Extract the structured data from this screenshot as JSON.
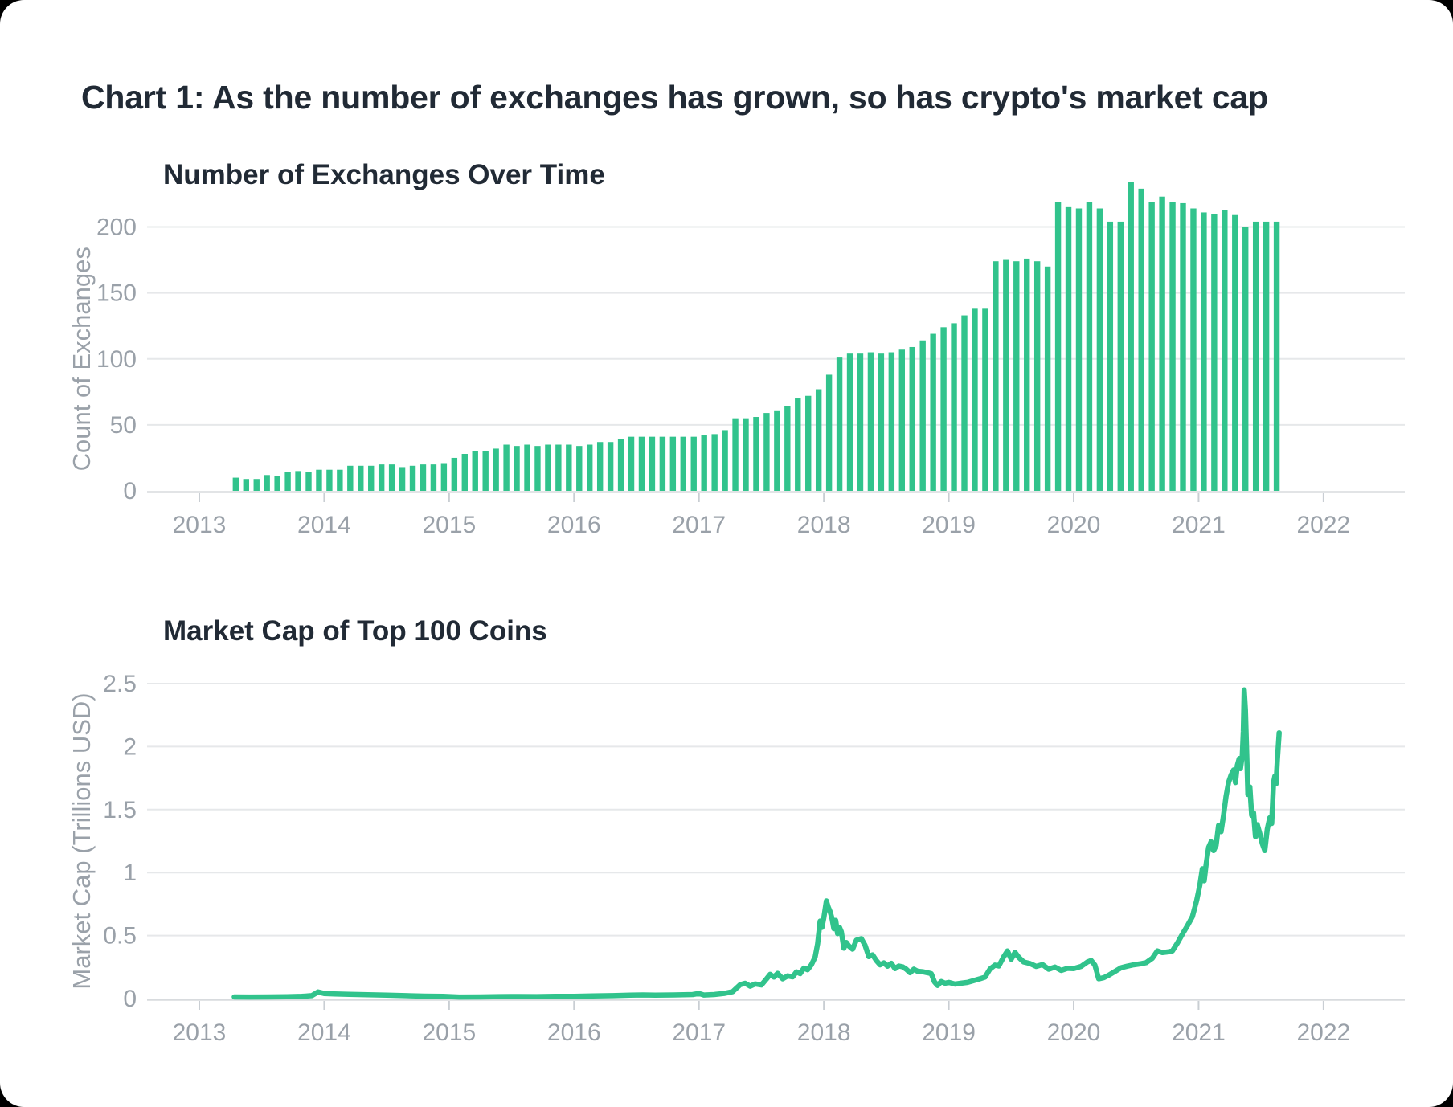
{
  "page": {
    "title": "Chart 1: As the number of exchanges has grown, so has crypto's market cap"
  },
  "colors": {
    "accent_green": "#31c38c",
    "title_text": "#212a35",
    "axis_text": "#9aa1a9",
    "gridline": "#e6e8ea",
    "axis_line": "#d8dbde",
    "tick_mark": "#c9ced3",
    "card_background": "#ffffff",
    "page_background": "#000000"
  },
  "chart_data": [
    {
      "type": "bar",
      "title": "Number of Exchanges Over Time",
      "xlabel": "",
      "ylabel": "Count of Exchanges",
      "x_tick_labels": [
        "2013",
        "2014",
        "2015",
        "2016",
        "2017",
        "2018",
        "2019",
        "2020",
        "2021",
        "2022"
      ],
      "y_ticks": [
        {
          "v": 0,
          "label": "0"
        },
        {
          "v": 50,
          "label": "50"
        },
        {
          "v": 100,
          "label": "100"
        },
        {
          "v": 150,
          "label": "150"
        },
        {
          "v": 200,
          "label": "200"
        }
      ],
      "ylim": [
        0,
        240
      ],
      "series_start": "2013-04",
      "frequency": "monthly",
      "values": [
        10,
        9,
        9,
        12,
        11,
        14,
        15,
        14,
        16,
        16,
        16,
        19,
        19,
        19,
        20,
        20,
        18,
        19,
        20,
        20,
        21,
        25,
        28,
        30,
        30,
        32,
        35,
        34,
        35,
        34,
        35,
        35,
        35,
        34,
        35,
        37,
        37,
        39,
        41,
        41,
        41,
        41,
        41,
        41,
        41,
        42,
        43,
        46,
        55,
        55,
        56,
        59,
        61,
        64,
        70,
        72,
        77,
        88,
        101,
        104,
        104,
        105,
        104,
        105,
        107,
        109,
        114,
        119,
        124,
        127,
        133,
        138,
        138,
        174,
        175,
        174,
        176,
        174,
        170,
        219,
        215,
        214,
        219,
        214,
        204,
        204,
        234,
        229,
        219,
        223,
        219,
        218,
        214,
        211,
        210,
        213,
        209,
        200,
        204,
        204,
        204
      ]
    },
    {
      "type": "line",
      "title": "Market Cap of Top 100 Coins",
      "xlabel": "",
      "ylabel": "Market Cap (Trillions USD)",
      "x_tick_labels": [
        "2013",
        "2014",
        "2015",
        "2016",
        "2017",
        "2018",
        "2019",
        "2020",
        "2021",
        "2022"
      ],
      "y_ticks": [
        {
          "v": 0,
          "label": "0"
        },
        {
          "v": 0.5,
          "label": "0.5"
        },
        {
          "v": 1,
          "label": "1"
        },
        {
          "v": 1.5,
          "label": "1.5"
        },
        {
          "v": 2,
          "label": "2"
        },
        {
          "v": 2.5,
          "label": "2.5"
        }
      ],
      "ylim": [
        0,
        2.6
      ],
      "x_unit": "decimal_year",
      "points": [
        [
          2013.28,
          0.013
        ],
        [
          2013.4,
          0.012
        ],
        [
          2013.55,
          0.013
        ],
        [
          2013.7,
          0.014
        ],
        [
          2013.82,
          0.017
        ],
        [
          2013.9,
          0.023
        ],
        [
          2013.95,
          0.052
        ],
        [
          2014.0,
          0.04
        ],
        [
          2014.08,
          0.037
        ],
        [
          2014.2,
          0.033
        ],
        [
          2014.35,
          0.03
        ],
        [
          2014.5,
          0.027
        ],
        [
          2014.65,
          0.023
        ],
        [
          2014.8,
          0.019
        ],
        [
          2014.95,
          0.017
        ],
        [
          2015.08,
          0.012
        ],
        [
          2015.25,
          0.013
        ],
        [
          2015.4,
          0.015
        ],
        [
          2015.55,
          0.016
        ],
        [
          2015.7,
          0.015
        ],
        [
          2015.85,
          0.017
        ],
        [
          2016.0,
          0.018
        ],
        [
          2016.15,
          0.021
        ],
        [
          2016.3,
          0.023
        ],
        [
          2016.45,
          0.027
        ],
        [
          2016.55,
          0.029
        ],
        [
          2016.65,
          0.027
        ],
        [
          2016.8,
          0.029
        ],
        [
          2016.95,
          0.032
        ],
        [
          2017.0,
          0.04
        ],
        [
          2017.04,
          0.028
        ],
        [
          2017.12,
          0.032
        ],
        [
          2017.2,
          0.04
        ],
        [
          2017.27,
          0.055
        ],
        [
          2017.33,
          0.11
        ],
        [
          2017.37,
          0.121
        ],
        [
          2017.41,
          0.098
        ],
        [
          2017.45,
          0.116
        ],
        [
          2017.5,
          0.108
        ],
        [
          2017.54,
          0.155
        ],
        [
          2017.57,
          0.192
        ],
        [
          2017.6,
          0.17
        ],
        [
          2017.63,
          0.2
        ],
        [
          2017.67,
          0.157
        ],
        [
          2017.71,
          0.18
        ],
        [
          2017.75,
          0.172
        ],
        [
          2017.78,
          0.212
        ],
        [
          2017.81,
          0.198
        ],
        [
          2017.84,
          0.242
        ],
        [
          2017.87,
          0.228
        ],
        [
          2017.9,
          0.268
        ],
        [
          2017.93,
          0.33
        ],
        [
          2017.95,
          0.435
        ],
        [
          2017.97,
          0.615
        ],
        [
          2017.985,
          0.565
        ],
        [
          2018.0,
          0.645
        ],
        [
          2018.02,
          0.775
        ],
        [
          2018.035,
          0.725
        ],
        [
          2018.05,
          0.69
        ],
        [
          2018.065,
          0.635
        ],
        [
          2018.08,
          0.555
        ],
        [
          2018.095,
          0.62
        ],
        [
          2018.11,
          0.515
        ],
        [
          2018.125,
          0.565
        ],
        [
          2018.14,
          0.53
        ],
        [
          2018.16,
          0.4
        ],
        [
          2018.18,
          0.445
        ],
        [
          2018.2,
          0.418
        ],
        [
          2018.23,
          0.392
        ],
        [
          2018.26,
          0.463
        ],
        [
          2018.3,
          0.475
        ],
        [
          2018.33,
          0.423
        ],
        [
          2018.36,
          0.333
        ],
        [
          2018.39,
          0.347
        ],
        [
          2018.42,
          0.302
        ],
        [
          2018.45,
          0.268
        ],
        [
          2018.48,
          0.283
        ],
        [
          2018.51,
          0.257
        ],
        [
          2018.54,
          0.28
        ],
        [
          2018.57,
          0.237
        ],
        [
          2018.6,
          0.258
        ],
        [
          2018.63,
          0.252
        ],
        [
          2018.66,
          0.233
        ],
        [
          2018.69,
          0.205
        ],
        [
          2018.72,
          0.233
        ],
        [
          2018.75,
          0.217
        ],
        [
          2018.79,
          0.213
        ],
        [
          2018.83,
          0.205
        ],
        [
          2018.86,
          0.198
        ],
        [
          2018.885,
          0.133
        ],
        [
          2018.91,
          0.104
        ],
        [
          2018.94,
          0.135
        ],
        [
          2018.97,
          0.122
        ],
        [
          2019.0,
          0.128
        ],
        [
          2019.05,
          0.115
        ],
        [
          2019.1,
          0.122
        ],
        [
          2019.15,
          0.128
        ],
        [
          2019.2,
          0.143
        ],
        [
          2019.25,
          0.157
        ],
        [
          2019.29,
          0.17
        ],
        [
          2019.33,
          0.235
        ],
        [
          2019.37,
          0.265
        ],
        [
          2019.4,
          0.258
        ],
        [
          2019.44,
          0.332
        ],
        [
          2019.47,
          0.378
        ],
        [
          2019.5,
          0.312
        ],
        [
          2019.53,
          0.367
        ],
        [
          2019.56,
          0.328
        ],
        [
          2019.6,
          0.29
        ],
        [
          2019.65,
          0.278
        ],
        [
          2019.7,
          0.255
        ],
        [
          2019.75,
          0.27
        ],
        [
          2019.8,
          0.233
        ],
        [
          2019.85,
          0.25
        ],
        [
          2019.9,
          0.223
        ],
        [
          2019.95,
          0.24
        ],
        [
          2020.0,
          0.238
        ],
        [
          2020.06,
          0.255
        ],
        [
          2020.11,
          0.29
        ],
        [
          2020.14,
          0.302
        ],
        [
          2020.17,
          0.265
        ],
        [
          2020.2,
          0.157
        ],
        [
          2020.24,
          0.165
        ],
        [
          2020.28,
          0.185
        ],
        [
          2020.33,
          0.215
        ],
        [
          2020.38,
          0.245
        ],
        [
          2020.43,
          0.257
        ],
        [
          2020.48,
          0.268
        ],
        [
          2020.53,
          0.275
        ],
        [
          2020.58,
          0.285
        ],
        [
          2020.63,
          0.32
        ],
        [
          2020.67,
          0.378
        ],
        [
          2020.71,
          0.365
        ],
        [
          2020.75,
          0.37
        ],
        [
          2020.79,
          0.378
        ],
        [
          2020.83,
          0.44
        ],
        [
          2020.87,
          0.51
        ],
        [
          2020.91,
          0.578
        ],
        [
          2020.95,
          0.65
        ],
        [
          2020.985,
          0.78
        ],
        [
          2021.01,
          0.9
        ],
        [
          2021.03,
          1.03
        ],
        [
          2021.045,
          0.935
        ],
        [
          2021.06,
          1.065
        ],
        [
          2021.08,
          1.2
        ],
        [
          2021.1,
          1.245
        ],
        [
          2021.12,
          1.175
        ],
        [
          2021.14,
          1.215
        ],
        [
          2021.16,
          1.375
        ],
        [
          2021.18,
          1.325
        ],
        [
          2021.2,
          1.455
        ],
        [
          2021.22,
          1.605
        ],
        [
          2021.24,
          1.715
        ],
        [
          2021.26,
          1.775
        ],
        [
          2021.28,
          1.815
        ],
        [
          2021.295,
          1.715
        ],
        [
          2021.31,
          1.85
        ],
        [
          2021.325,
          1.905
        ],
        [
          2021.335,
          1.825
        ],
        [
          2021.35,
          1.93
        ],
        [
          2021.358,
          2.12
        ],
        [
          2021.365,
          2.45
        ],
        [
          2021.375,
          2.29
        ],
        [
          2021.385,
          1.95
        ],
        [
          2021.395,
          1.62
        ],
        [
          2021.41,
          1.68
        ],
        [
          2021.425,
          1.455
        ],
        [
          2021.44,
          1.475
        ],
        [
          2021.455,
          1.285
        ],
        [
          2021.47,
          1.38
        ],
        [
          2021.49,
          1.31
        ],
        [
          2021.51,
          1.23
        ],
        [
          2021.53,
          1.175
        ],
        [
          2021.55,
          1.345
        ],
        [
          2021.57,
          1.435
        ],
        [
          2021.585,
          1.39
        ],
        [
          2021.6,
          1.715
        ],
        [
          2021.61,
          1.765
        ],
        [
          2021.62,
          1.705
        ],
        [
          2021.63,
          1.89
        ],
        [
          2021.645,
          2.11
        ]
      ]
    }
  ]
}
